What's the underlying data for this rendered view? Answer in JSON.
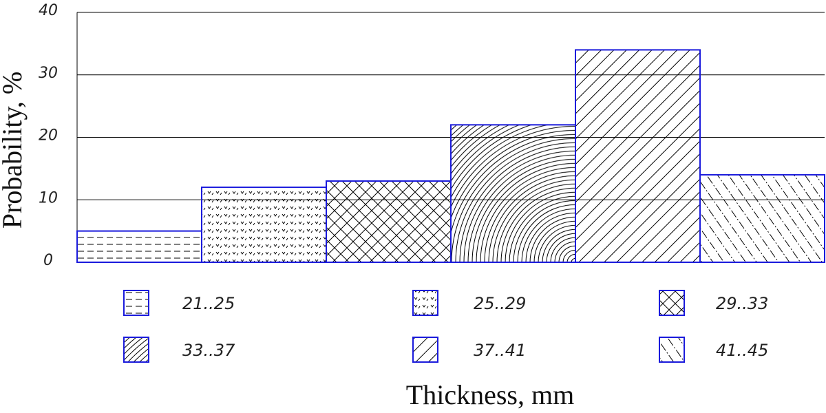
{
  "chart_data": {
    "type": "bar",
    "x_label": "Thickness, mm",
    "y_label": "Probability, %",
    "categories": [
      "21..25",
      "25..29",
      "29..33",
      "33..37",
      "37..41",
      "41..45"
    ],
    "values": [
      5,
      12,
      13,
      22,
      34,
      14
    ],
    "color": "#1a1adc",
    "ylim": [
      0,
      40
    ],
    "yticks": [
      0,
      10,
      20,
      30,
      40
    ],
    "grid": true
  }
}
